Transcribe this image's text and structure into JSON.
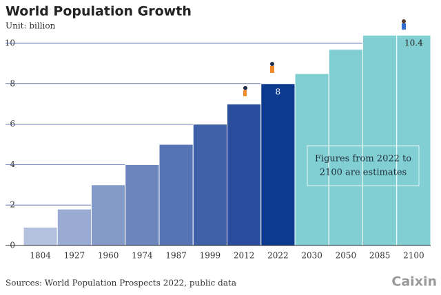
{
  "chart_data": {
    "type": "bar",
    "title": "World Population Growth",
    "subtitle": "Unit: billion",
    "categories": [
      "1804",
      "1927",
      "1960",
      "1974",
      "1987",
      "1999",
      "2012",
      "2022",
      "2030",
      "2050",
      "2085",
      "2100"
    ],
    "values": [
      0.9,
      1.8,
      3.0,
      4.0,
      5.0,
      6.0,
      7.0,
      8.0,
      8.5,
      9.7,
      10.4,
      10.4
    ],
    "colors": [
      "#b4c1de",
      "#9aabd3",
      "#8399c8",
      "#6c86bd",
      "#5674b3",
      "#3f5fa7",
      "#2a4d9d",
      "#0b3a8f",
      "#82cfd3",
      "#82cfd3",
      "#82cfd3",
      "#82cfd3"
    ],
    "data_labels": {
      "7": "8",
      "11": "10.4"
    },
    "ylim": [
      0,
      10.4
    ],
    "yticks": [
      0,
      2,
      4,
      6,
      8,
      10
    ],
    "grid": true,
    "annotation": [
      "Figures from 2022 to",
      "2100 are estimates"
    ],
    "source": "Sources: World Population Prospects 2022, public data",
    "brand": "Caixin"
  }
}
